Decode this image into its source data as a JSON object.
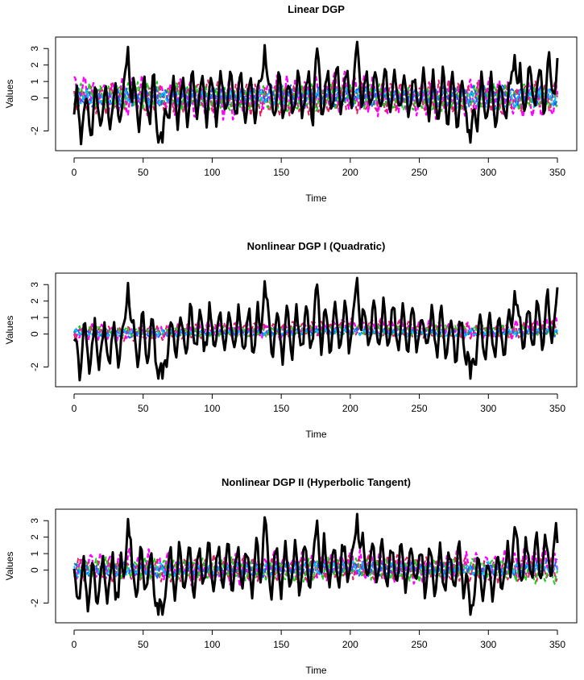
{
  "chart_data": [
    {
      "type": "line",
      "title": "Linear DGP",
      "xlabel": "Time",
      "ylabel": "Values",
      "xlim": [
        0,
        350
      ],
      "ylim": [
        -3,
        3.5
      ],
      "x_ticks": [
        0,
        50,
        100,
        150,
        200,
        250,
        300,
        350
      ],
      "y_ticks": [
        -2,
        0,
        1,
        2,
        3
      ],
      "x": [
        0,
        50,
        100,
        150,
        200,
        250,
        300,
        350
      ],
      "series": [
        {
          "color": "#000000",
          "style": "solid",
          "width": 3.0,
          "values": [
            -1.0,
            -0.3,
            0.2,
            0.0,
            0.5,
            0.2,
            -0.4,
            1.1
          ],
          "peaks": [
            [
              39,
              3.1
            ],
            [
              61,
              -2.7
            ],
            [
              64,
              -2.7
            ],
            [
              138,
              3.2
            ],
            [
              176,
              3.0
            ],
            [
              205,
              3.4
            ],
            [
              287,
              -2.7
            ],
            [
              319,
              2.6
            ]
          ],
          "amp": 1.3
        },
        {
          "color": "#ff00ff",
          "style": "dashed",
          "width": 2.4,
          "values": [
            0.3,
            0.2,
            -0.2,
            0.1,
            0.4,
            -0.1,
            0.2,
            -0.4
          ],
          "amp": 0.9
        },
        {
          "color": "#dd2266",
          "style": "dashed",
          "width": 2.0,
          "values": [
            0.0,
            -0.1,
            0.2,
            -0.2,
            0.0,
            0.1,
            -0.1,
            0.2
          ],
          "amp": 0.7
        },
        {
          "color": "#22cc22",
          "style": "dashed",
          "width": 2.0,
          "values": [
            0.1,
            0.2,
            0.0,
            -0.1,
            0.2,
            -0.2,
            0.1,
            0.0
          ],
          "amp": 0.6
        },
        {
          "color": "#1f5fff",
          "style": "dashed",
          "width": 2.0,
          "values": [
            0.1,
            0.0,
            0.1,
            0.2,
            0.0,
            0.1,
            0.2,
            0.1
          ],
          "amp": 0.5
        },
        {
          "color": "#00bfff",
          "style": "dashed",
          "width": 2.0,
          "values": [
            0.0,
            0.1,
            -0.1,
            0.0,
            0.1,
            0.0,
            -0.1,
            0.0
          ],
          "amp": 0.4
        }
      ]
    },
    {
      "type": "line",
      "title": "Nonlinear DGP I (Quadratic)",
      "xlabel": "Time",
      "ylabel": "Values",
      "xlim": [
        0,
        350
      ],
      "ylim": [
        -3,
        3.5
      ],
      "x_ticks": [
        0,
        50,
        100,
        150,
        200,
        250,
        300,
        350
      ],
      "y_ticks": [
        -2,
        0,
        1,
        2,
        3
      ],
      "x": [
        0,
        50,
        100,
        150,
        200,
        250,
        300,
        350
      ],
      "series": [
        {
          "color": "#000000",
          "style": "solid",
          "width": 3.0,
          "values": [
            -1.0,
            -0.3,
            0.2,
            0.0,
            0.5,
            0.2,
            -0.4,
            1.1
          ],
          "peaks": [
            [
              39,
              3.1
            ],
            [
              61,
              -2.7
            ],
            [
              64,
              -2.7
            ],
            [
              138,
              3.2
            ],
            [
              176,
              3.0
            ],
            [
              205,
              3.4
            ],
            [
              287,
              -2.7
            ],
            [
              319,
              2.6
            ]
          ],
          "amp": 1.3
        },
        {
          "color": "#ff00ff",
          "style": "dashed",
          "width": 2.4,
          "values": [
            0.0,
            0.1,
            0.3,
            0.2,
            0.5,
            0.4,
            0.1,
            0.6
          ],
          "amp": 0.4
        },
        {
          "color": "#dd2266",
          "style": "dashed",
          "width": 2.0,
          "values": [
            0.1,
            0.0,
            0.2,
            0.3,
            0.4,
            0.2,
            0.1,
            0.4
          ],
          "amp": 0.35
        },
        {
          "color": "#22cc22",
          "style": "dashed",
          "width": 2.0,
          "values": [
            0.2,
            0.1,
            0.1,
            0.2,
            0.3,
            0.2,
            0.2,
            0.2
          ],
          "amp": 0.25
        },
        {
          "color": "#1f5fff",
          "style": "dashed",
          "width": 2.0,
          "values": [
            0.1,
            0.0,
            0.1,
            0.1,
            0.2,
            0.1,
            0.1,
            0.1
          ],
          "amp": 0.2
        },
        {
          "color": "#00bfff",
          "style": "dashed",
          "width": 2.0,
          "values": [
            0.1,
            0.1,
            0.0,
            0.1,
            0.1,
            0.0,
            0.1,
            0.1
          ],
          "amp": 0.15
        }
      ]
    },
    {
      "type": "line",
      "title": "Nonlinear DGP II (Hyperbolic Tangent)",
      "xlabel": "Time",
      "ylabel": "Values",
      "xlim": [
        0,
        350
      ],
      "ylim": [
        -3,
        3.5
      ],
      "x_ticks": [
        0,
        50,
        100,
        150,
        200,
        250,
        300,
        350
      ],
      "y_ticks": [
        -2,
        0,
        1,
        2,
        3
      ],
      "x": [
        0,
        50,
        100,
        150,
        200,
        250,
        300,
        350
      ],
      "series": [
        {
          "color": "#000000",
          "style": "solid",
          "width": 3.0,
          "values": [
            -1.0,
            -0.3,
            0.2,
            0.0,
            0.5,
            0.2,
            -0.4,
            1.1
          ],
          "peaks": [
            [
              39,
              3.1
            ],
            [
              61,
              -2.7
            ],
            [
              64,
              -2.7
            ],
            [
              138,
              3.2
            ],
            [
              176,
              3.0
            ],
            [
              205,
              3.4
            ],
            [
              287,
              -2.7
            ],
            [
              319,
              2.6
            ]
          ],
          "amp": 1.3
        },
        {
          "color": "#ff00ff",
          "style": "dashed",
          "width": 2.4,
          "values": [
            0.2,
            0.3,
            -0.1,
            0.2,
            0.4,
            0.0,
            0.3,
            0.5
          ],
          "amp": 0.7
        },
        {
          "color": "#dd2266",
          "style": "dashed",
          "width": 2.0,
          "values": [
            0.1,
            -0.1,
            0.2,
            0.0,
            0.1,
            0.2,
            -0.1,
            0.1
          ],
          "amp": 0.55
        },
        {
          "color": "#22cc22",
          "style": "dashed",
          "width": 2.0,
          "values": [
            0.0,
            0.1,
            0.1,
            -0.1,
            0.2,
            0.0,
            0.1,
            -0.2
          ],
          "amp": 0.5
        },
        {
          "color": "#1f5fff",
          "style": "dashed",
          "width": 2.0,
          "values": [
            0.1,
            0.0,
            0.0,
            0.1,
            0.1,
            0.1,
            0.0,
            0.2
          ],
          "amp": 0.4
        },
        {
          "color": "#00bfff",
          "style": "dashed",
          "width": 2.0,
          "values": [
            0.0,
            0.1,
            0.0,
            0.0,
            0.1,
            0.0,
            0.1,
            0.0
          ],
          "amp": 0.3
        }
      ]
    }
  ]
}
